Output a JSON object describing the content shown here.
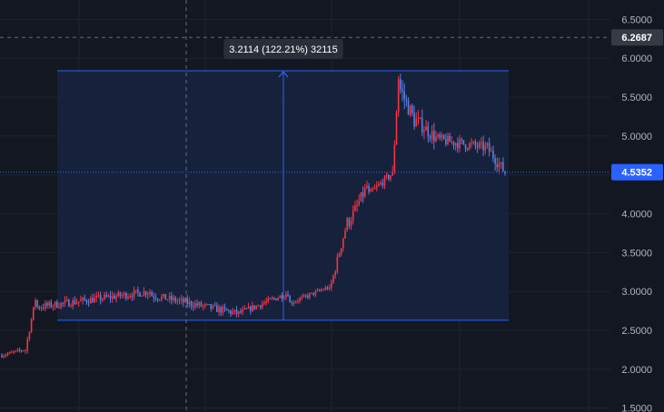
{
  "chart_data": {
    "type": "candlestick",
    "y_axis": {
      "ticks": [
        "6.5000",
        "6.0000",
        "5.5000",
        "5.0000",
        "4.5000",
        "4.0000",
        "3.5000",
        "3.0000",
        "2.5000",
        "2.0000",
        "1.5000"
      ],
      "ylim": [
        1.45,
        6.75
      ],
      "position": "right"
    },
    "crosshair": {
      "price_label": "6.2687",
      "price": 6.2687
    },
    "last_price": {
      "label": "4.5352",
      "price": 4.5352
    },
    "measure": {
      "label": "3.2114 (122.21%) 32115",
      "low": 2.63,
      "high": 5.84
    },
    "series": {
      "segments": [
        {
          "n": 12,
          "start": 2.18,
          "end": 2.25,
          "noise": 0.05
        },
        {
          "n": 6,
          "start": 2.25,
          "end": 2.9,
          "noise": 0.08
        },
        {
          "n": 58,
          "start": 2.8,
          "end": 3.0,
          "noise": 0.1
        },
        {
          "n": 44,
          "start": 2.95,
          "end": 2.72,
          "noise": 0.1
        },
        {
          "n": 26,
          "start": 2.72,
          "end": 2.98,
          "noise": 0.08
        },
        {
          "n": 20,
          "start": 2.85,
          "end": 3.05,
          "noise": 0.06
        },
        {
          "n": 10,
          "start": 3.0,
          "end": 3.9,
          "noise": 0.12
        },
        {
          "n": 10,
          "start": 3.9,
          "end": 4.35,
          "noise": 0.15
        },
        {
          "n": 12,
          "start": 4.25,
          "end": 4.5,
          "noise": 0.1
        },
        {
          "n": 4,
          "start": 4.5,
          "end": 5.75,
          "noise": 0.15
        },
        {
          "n": 8,
          "start": 5.6,
          "end": 5.2,
          "noise": 0.22
        },
        {
          "n": 12,
          "start": 5.2,
          "end": 4.95,
          "noise": 0.18
        },
        {
          "n": 24,
          "start": 4.95,
          "end": 4.85,
          "noise": 0.14
        },
        {
          "n": 10,
          "start": 4.85,
          "end": 4.53,
          "noise": 0.15
        }
      ]
    },
    "colors": {
      "background": "#131722",
      "grid": "#1f232d",
      "up": "#f23645",
      "down": "#5b7fdc",
      "measure_fill": "#172340",
      "measure_line": "#2962ff",
      "tag_bg": "#2962ff",
      "crosshair_tag_bg": "#363a45",
      "axis_text": "#b2b5be"
    }
  }
}
